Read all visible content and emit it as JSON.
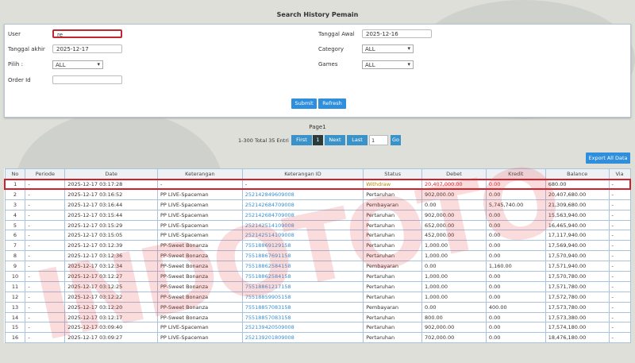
{
  "title": "Search History Pemain",
  "form": {
    "user_label": "User",
    "user_value": "re",
    "tanggal_akhir_label": "Tanggal akhir",
    "tanggal_akhir_value": "2025-12-17",
    "pilih_label": "Pilih  :",
    "pilih_value": "ALL",
    "order_id_label": "Order Id",
    "order_id_value": "",
    "tanggal_awal_label": "Tanggal Awal",
    "tanggal_awal_value": "2025-12-16",
    "category_label": "Category",
    "category_value": "ALL",
    "games_label": "Games",
    "games_value": "ALL",
    "submit": "Submit",
    "refresh": "Refresh"
  },
  "pagination": {
    "page_label": "Page1",
    "summary": "1-300 Total 35 Entri",
    "first": "First",
    "current": "1",
    "next": "Next",
    "last": "Last",
    "page_input": "1",
    "go": "Go"
  },
  "export": "Export All Data",
  "table": {
    "headers": [
      "No",
      "Periode",
      "Date",
      "Keterangan",
      "Keterangan ID",
      "Status",
      "Debet",
      "Kredit",
      "Balance",
      "Via"
    ],
    "rows": [
      [
        "1",
        "-",
        "2025-12-17 03:17:28",
        "-",
        "-",
        "Withdraw",
        "20,407,000.00",
        "0.00",
        "680.00",
        "-"
      ],
      [
        "2",
        "-",
        "2025-12-17 03:16:52",
        "PP LIVE-Spaceman",
        "252142849609008",
        "Pertaruhan",
        "902,000.00",
        "0.00",
        "20,407,680.00",
        "-"
      ],
      [
        "3",
        "-",
        "2025-12-17 03:16:44",
        "PP LIVE-Spaceman",
        "252142684709008",
        "Pembayaran",
        "0.00",
        "5,745,740.00",
        "21,309,680.00",
        "-"
      ],
      [
        "4",
        "-",
        "2025-12-17 03:15:44",
        "PP LIVE-Spaceman",
        "252142684709008",
        "Pertaruhan",
        "902,000.00",
        "0.00",
        "15,563,940.00",
        "-"
      ],
      [
        "5",
        "-",
        "2025-12-17 03:15:29",
        "PP LIVE-Spaceman",
        "252142514109008",
        "Pertaruhan",
        "652,000.00",
        "0.00",
        "16,465,940.00",
        "-"
      ],
      [
        "6",
        "-",
        "2025-12-17 03:15:05",
        "PP LIVE-Spaceman",
        "252142514109008",
        "Pertaruhan",
        "452,000.00",
        "0.00",
        "17,117,940.00",
        "-"
      ],
      [
        "7",
        "-",
        "2025-12-17 03:12:39",
        "PP-Sweet Bonanza",
        "75518869129158",
        "Pertaruhan",
        "1,000.00",
        "0.00",
        "17,569,940.00",
        "-"
      ],
      [
        "8",
        "-",
        "2025-12-17 03:12:36",
        "PP-Sweet Bonanza",
        "75518867691158",
        "Pertaruhan",
        "1,000.00",
        "0.00",
        "17,570,940.00",
        "-"
      ],
      [
        "9",
        "-",
        "2025-12-17 03:12:34",
        "PP-Sweet Bonanza",
        "75518862584158",
        "Pembayaran",
        "0.00",
        "1,160.00",
        "17,571,940.00",
        "-"
      ],
      [
        "10",
        "-",
        "2025-12-17 03:12:27",
        "PP-Sweet Bonanza",
        "75518862584158",
        "Pertaruhan",
        "1,000.00",
        "0.00",
        "17,570,780.00",
        "-"
      ],
      [
        "11",
        "-",
        "2025-12-17 03:12:25",
        "PP-Sweet Bonanza",
        "75518861217158",
        "Pertaruhan",
        "1,000.00",
        "0.00",
        "17,571,780.00",
        "-"
      ],
      [
        "12",
        "-",
        "2025-12-17 03:12:22",
        "PP-Sweet Bonanza",
        "75518859905158",
        "Pertaruhan",
        "1,000.00",
        "0.00",
        "17,572,780.00",
        "-"
      ],
      [
        "13",
        "-",
        "2025-12-17 03:12:20",
        "PP-Sweet Bonanza",
        "75518857083158",
        "Pembayaran",
        "0.00",
        "400.00",
        "17,573,780.00",
        "-"
      ],
      [
        "14",
        "-",
        "2025-12-17 03:12:17",
        "PP-Sweet Bonanza",
        "75518857083158",
        "Pertaruhan",
        "800.00",
        "0.00",
        "17,573,380.00",
        "-"
      ],
      [
        "15",
        "-",
        "2025-12-17 03:09:40",
        "PP LIVE-Spaceman",
        "252139420509008",
        "Pertaruhan",
        "902,000.00",
        "0.00",
        "17,574,180.00",
        "-"
      ],
      [
        "16",
        "-",
        "2025-12-17 03:09:27",
        "PP LIVE-Spaceman",
        "252139201809008",
        "Pertaruhan",
        "702,000.00",
        "0.00",
        "18,476,180.00",
        "-"
      ]
    ]
  },
  "watermark": "INDOTOTO",
  "colors": {
    "accent": "#2f8fdc",
    "highlight": "#d0202a",
    "withdraw": "#b58a00"
  }
}
